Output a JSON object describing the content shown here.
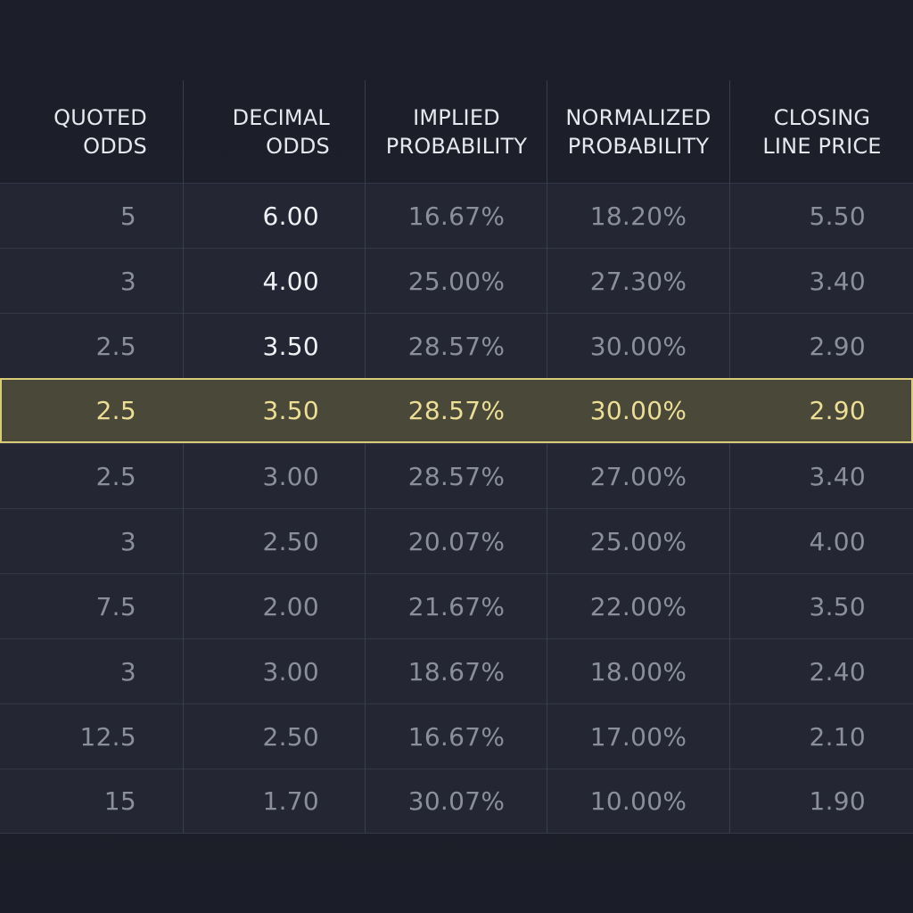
{
  "table": {
    "columns": [
      {
        "key": "quoted",
        "label": "QUOTED\nODDS"
      },
      {
        "key": "decimal",
        "label": "DECIMAL\nODDS"
      },
      {
        "key": "implied",
        "label": "IMPLIED\nPROBABILITY"
      },
      {
        "key": "normalized",
        "label": "NORMALIZED\nPROBABILITY"
      },
      {
        "key": "closing",
        "label": "CLOSING\nLINE PRICE"
      }
    ],
    "rows": [
      {
        "quoted": "5",
        "decimal": "6.00",
        "implied": "16.67%",
        "normalized": "18.20%",
        "closing": "5.50"
      },
      {
        "quoted": "3",
        "decimal": "4.00",
        "implied": "25.00%",
        "normalized": "27.30%",
        "closing": "3.40"
      },
      {
        "quoted": "2.5",
        "decimal": "3.50",
        "implied": "28.57%",
        "normalized": "30.00%",
        "closing": "2.90"
      },
      {
        "quoted": "2.5",
        "decimal": "3.50",
        "implied": "28.57%",
        "normalized": "30.00%",
        "closing": "2.90",
        "highlighted": true
      },
      {
        "quoted": "2.5",
        "decimal": "3.00",
        "implied": "28.57%",
        "normalized": "27.00%",
        "closing": "3.40"
      },
      {
        "quoted": "3",
        "decimal": "2.50",
        "implied": "20.07%",
        "normalized": "25.00%",
        "closing": "4.00"
      },
      {
        "quoted": "7.5",
        "decimal": "2.00",
        "implied": "21.67%",
        "normalized": "22.00%",
        "closing": "3.50"
      },
      {
        "quoted": "3",
        "decimal": "3.00",
        "implied": "18.67%",
        "normalized": "18.00%",
        "closing": "2.40"
      },
      {
        "quoted": "12.5",
        "decimal": "2.50",
        "implied": "16.67%",
        "normalized": "17.00%",
        "closing": "2.10"
      },
      {
        "quoted": "15",
        "decimal": "1.70",
        "implied": "30.07%",
        "normalized": "10.00%",
        "closing": "1.90"
      }
    ]
  },
  "colors": {
    "background": "#1d1f2b",
    "row": "#242634",
    "highlight_fill": "#4a4838",
    "highlight_border": "#d8cc78",
    "highlight_text": "#ecdf95",
    "header_text": "#e6e8ee",
    "muted_text": "#8b8e9b"
  }
}
